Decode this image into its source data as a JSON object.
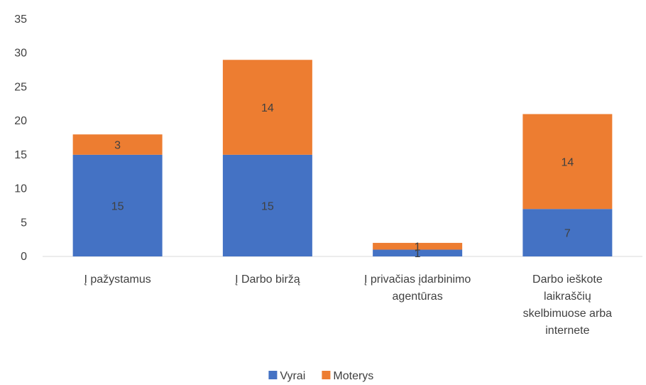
{
  "chart_data": {
    "type": "bar",
    "stacked": true,
    "categories": [
      [
        "Į pažystamus"
      ],
      [
        "Į Darbo biržą"
      ],
      [
        "Į privačias įdarbinimo",
        "agentūras"
      ],
      [
        "Darbo ieškote",
        "laikraščių",
        "skelbimuose arba",
        "internete"
      ]
    ],
    "series": [
      {
        "name": "Vyrai",
        "values": [
          15,
          15,
          1,
          7
        ],
        "color": "#4472C4"
      },
      {
        "name": "Moterys",
        "values": [
          3,
          14,
          1,
          14
        ],
        "color": "#ED7D31"
      }
    ],
    "ylim": [
      0,
      35
    ],
    "yticks": [
      0,
      5,
      10,
      15,
      20,
      25,
      30,
      35
    ],
    "grid": false,
    "legend": "bottom"
  }
}
